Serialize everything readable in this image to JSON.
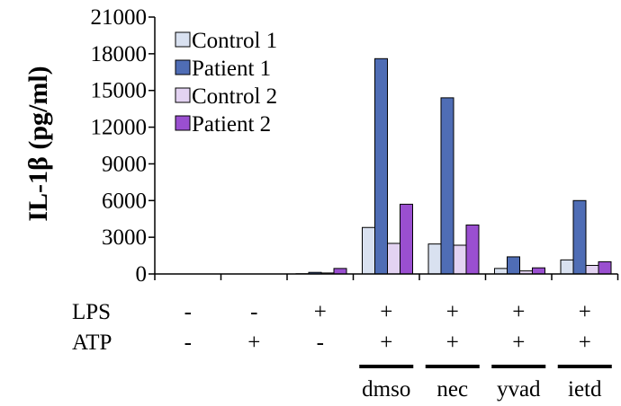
{
  "chart_data": {
    "type": "bar",
    "title": "",
    "xlabel": "",
    "ylabel": "IL-1β (pg/ml)",
    "ylim": [
      0,
      21000
    ],
    "yticks": [
      0,
      3000,
      6000,
      9000,
      12000,
      15000,
      18000,
      21000
    ],
    "ytick_labels": [
      "0",
      "3000",
      "6000",
      "9000",
      "12000",
      "15000",
      "18000",
      "21000"
    ],
    "grid": false,
    "legend_position": "top-left",
    "series": [
      {
        "name": "Control 1",
        "color": "#d9e1f0",
        "values": [
          0,
          0,
          20,
          3800,
          2450,
          450,
          1150
        ]
      },
      {
        "name": "Patient 1",
        "color": "#4f6db5",
        "values": [
          0,
          0,
          130,
          17600,
          14400,
          1400,
          6000
        ]
      },
      {
        "name": "Control 2",
        "color": "#e3d3f2",
        "values": [
          0,
          0,
          80,
          2500,
          2350,
          250,
          700
        ]
      },
      {
        "name": "Patient 2",
        "color": "#9a4fd0",
        "values": [
          0,
          0,
          450,
          5700,
          4000,
          500,
          1000
        ]
      }
    ],
    "conditions": {
      "LPS": [
        "-",
        "-",
        "+",
        "+",
        "+",
        "+",
        "+"
      ],
      "ATP": [
        "-",
        "+",
        "-",
        "+",
        "+",
        "+",
        "+"
      ]
    },
    "condition_labels": {
      "lps": "LPS",
      "atp": "ATP"
    },
    "inhibitors": [
      {
        "label": "dmso",
        "group": 3
      },
      {
        "label": "nec",
        "group": 4
      },
      {
        "label": "yvad",
        "group": 5
      },
      {
        "label": "ietd",
        "group": 6
      }
    ]
  }
}
